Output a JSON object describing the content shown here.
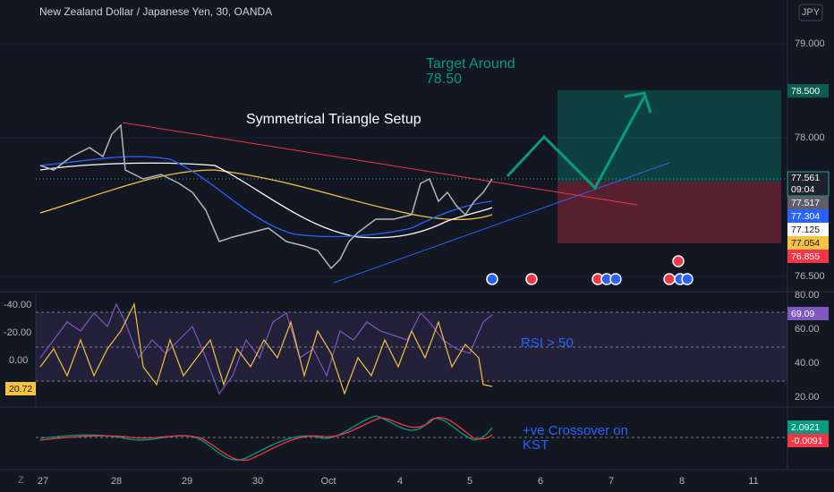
{
  "header": {
    "symbol": "New Zealand Dollar / Japanese Yen, 30, OANDA",
    "currency": "JPY"
  },
  "price_axis": {
    "ticks": [
      "79.000",
      "78.000",
      "76.500"
    ],
    "tags": [
      "78.500",
      "77.561",
      "09:04",
      "77.517",
      "77.304",
      "77.125",
      "77.054",
      "76.855"
    ]
  },
  "annotations": {
    "pattern": "Symmetrical Triangle Setup",
    "target": [
      "Target Around",
      "78.50"
    ],
    "rsi": "RSI > 50",
    "kst": [
      "+ve Crossover on",
      "KST"
    ]
  },
  "rsi_pane": {
    "left_ticks": [
      "-40.00",
      "-20.00",
      "0.00"
    ],
    "left_tag": "20.72",
    "right_ticks": [
      "80.00",
      "60.00",
      "40.00",
      "20.00"
    ],
    "right_tag": "69.09"
  },
  "kst_pane": {
    "tags": [
      "2.0921",
      "-0.0091"
    ]
  },
  "time_axis": {
    "labels": [
      "27",
      "28",
      "29",
      "30",
      "Oct",
      "4",
      "5",
      "6",
      "7",
      "8",
      "11"
    ]
  }
}
